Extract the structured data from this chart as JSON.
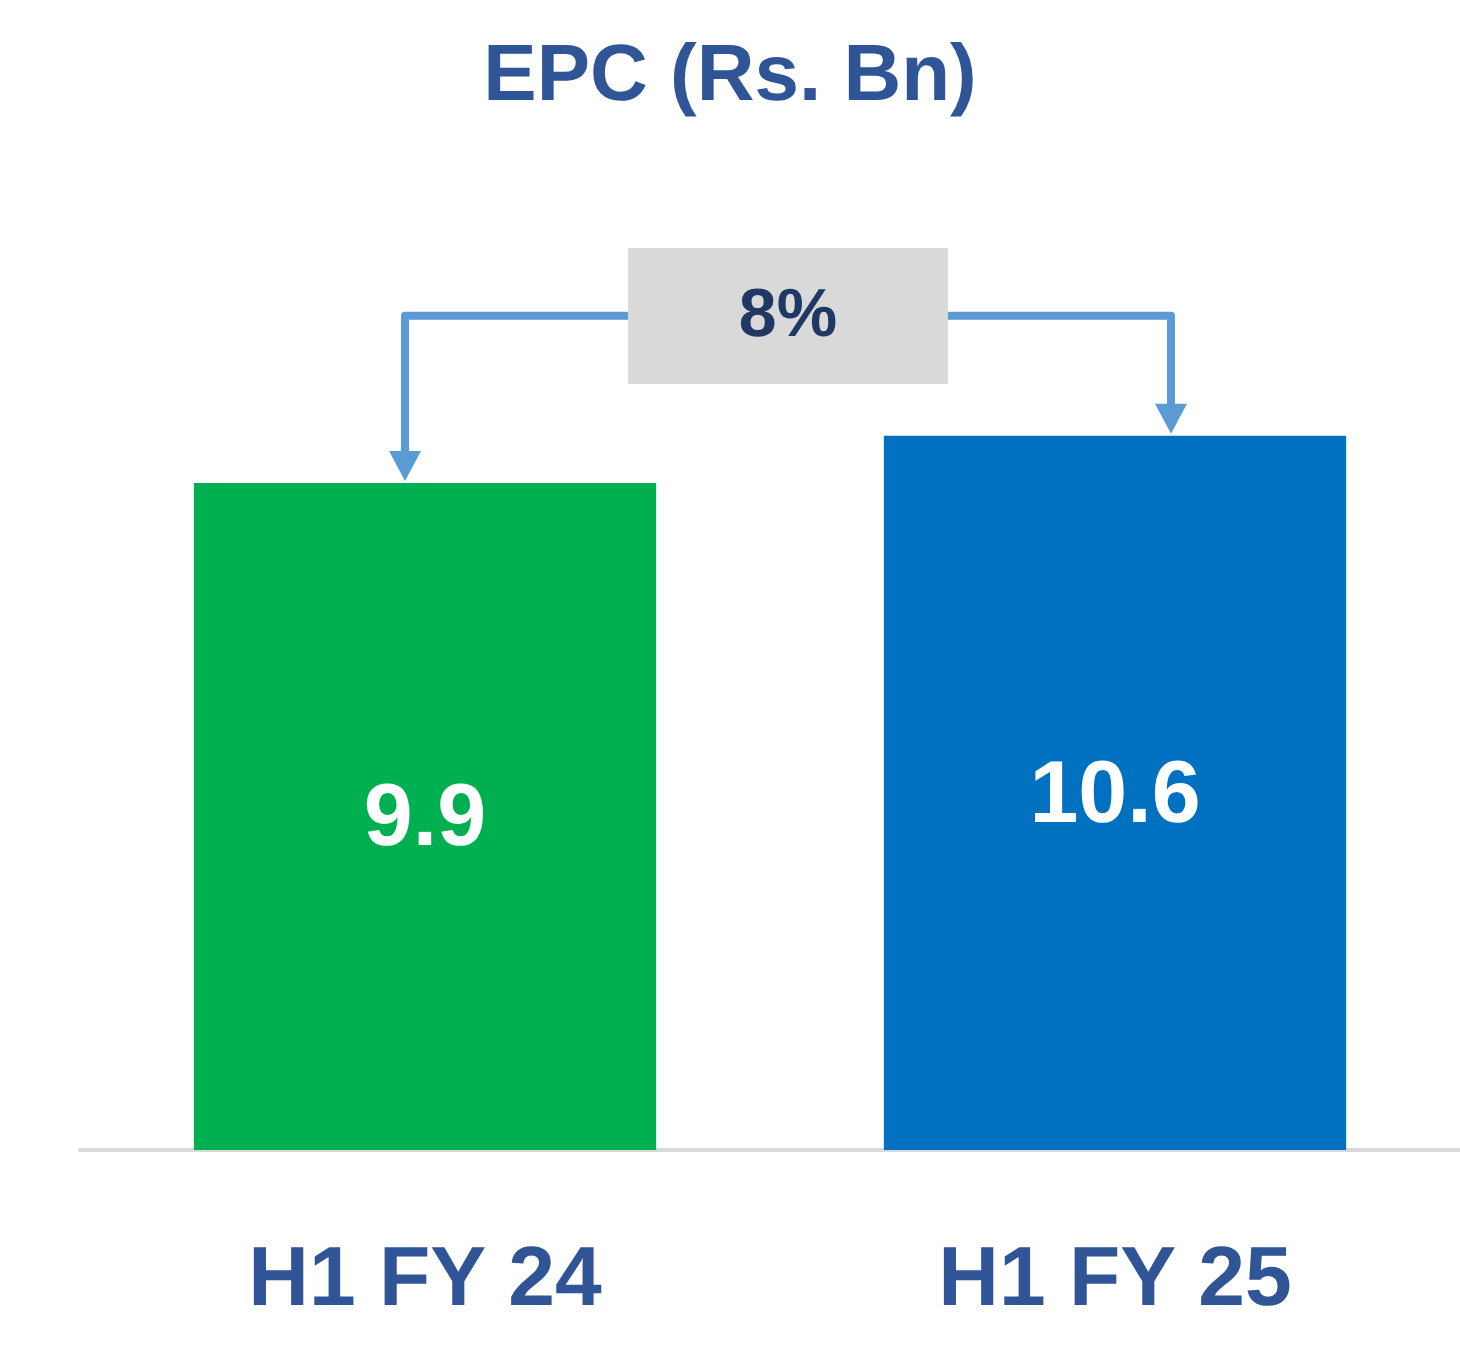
{
  "chart_data": {
    "type": "bar",
    "title": "EPC (Rs. Bn)",
    "categories": [
      "H1 FY 24",
      "H1 FY 25"
    ],
    "values": [
      9.9,
      10.6
    ],
    "colors": [
      "#00b050",
      "#0070c0"
    ],
    "data_labels": true,
    "annotations": [
      "8%"
    ]
  }
}
